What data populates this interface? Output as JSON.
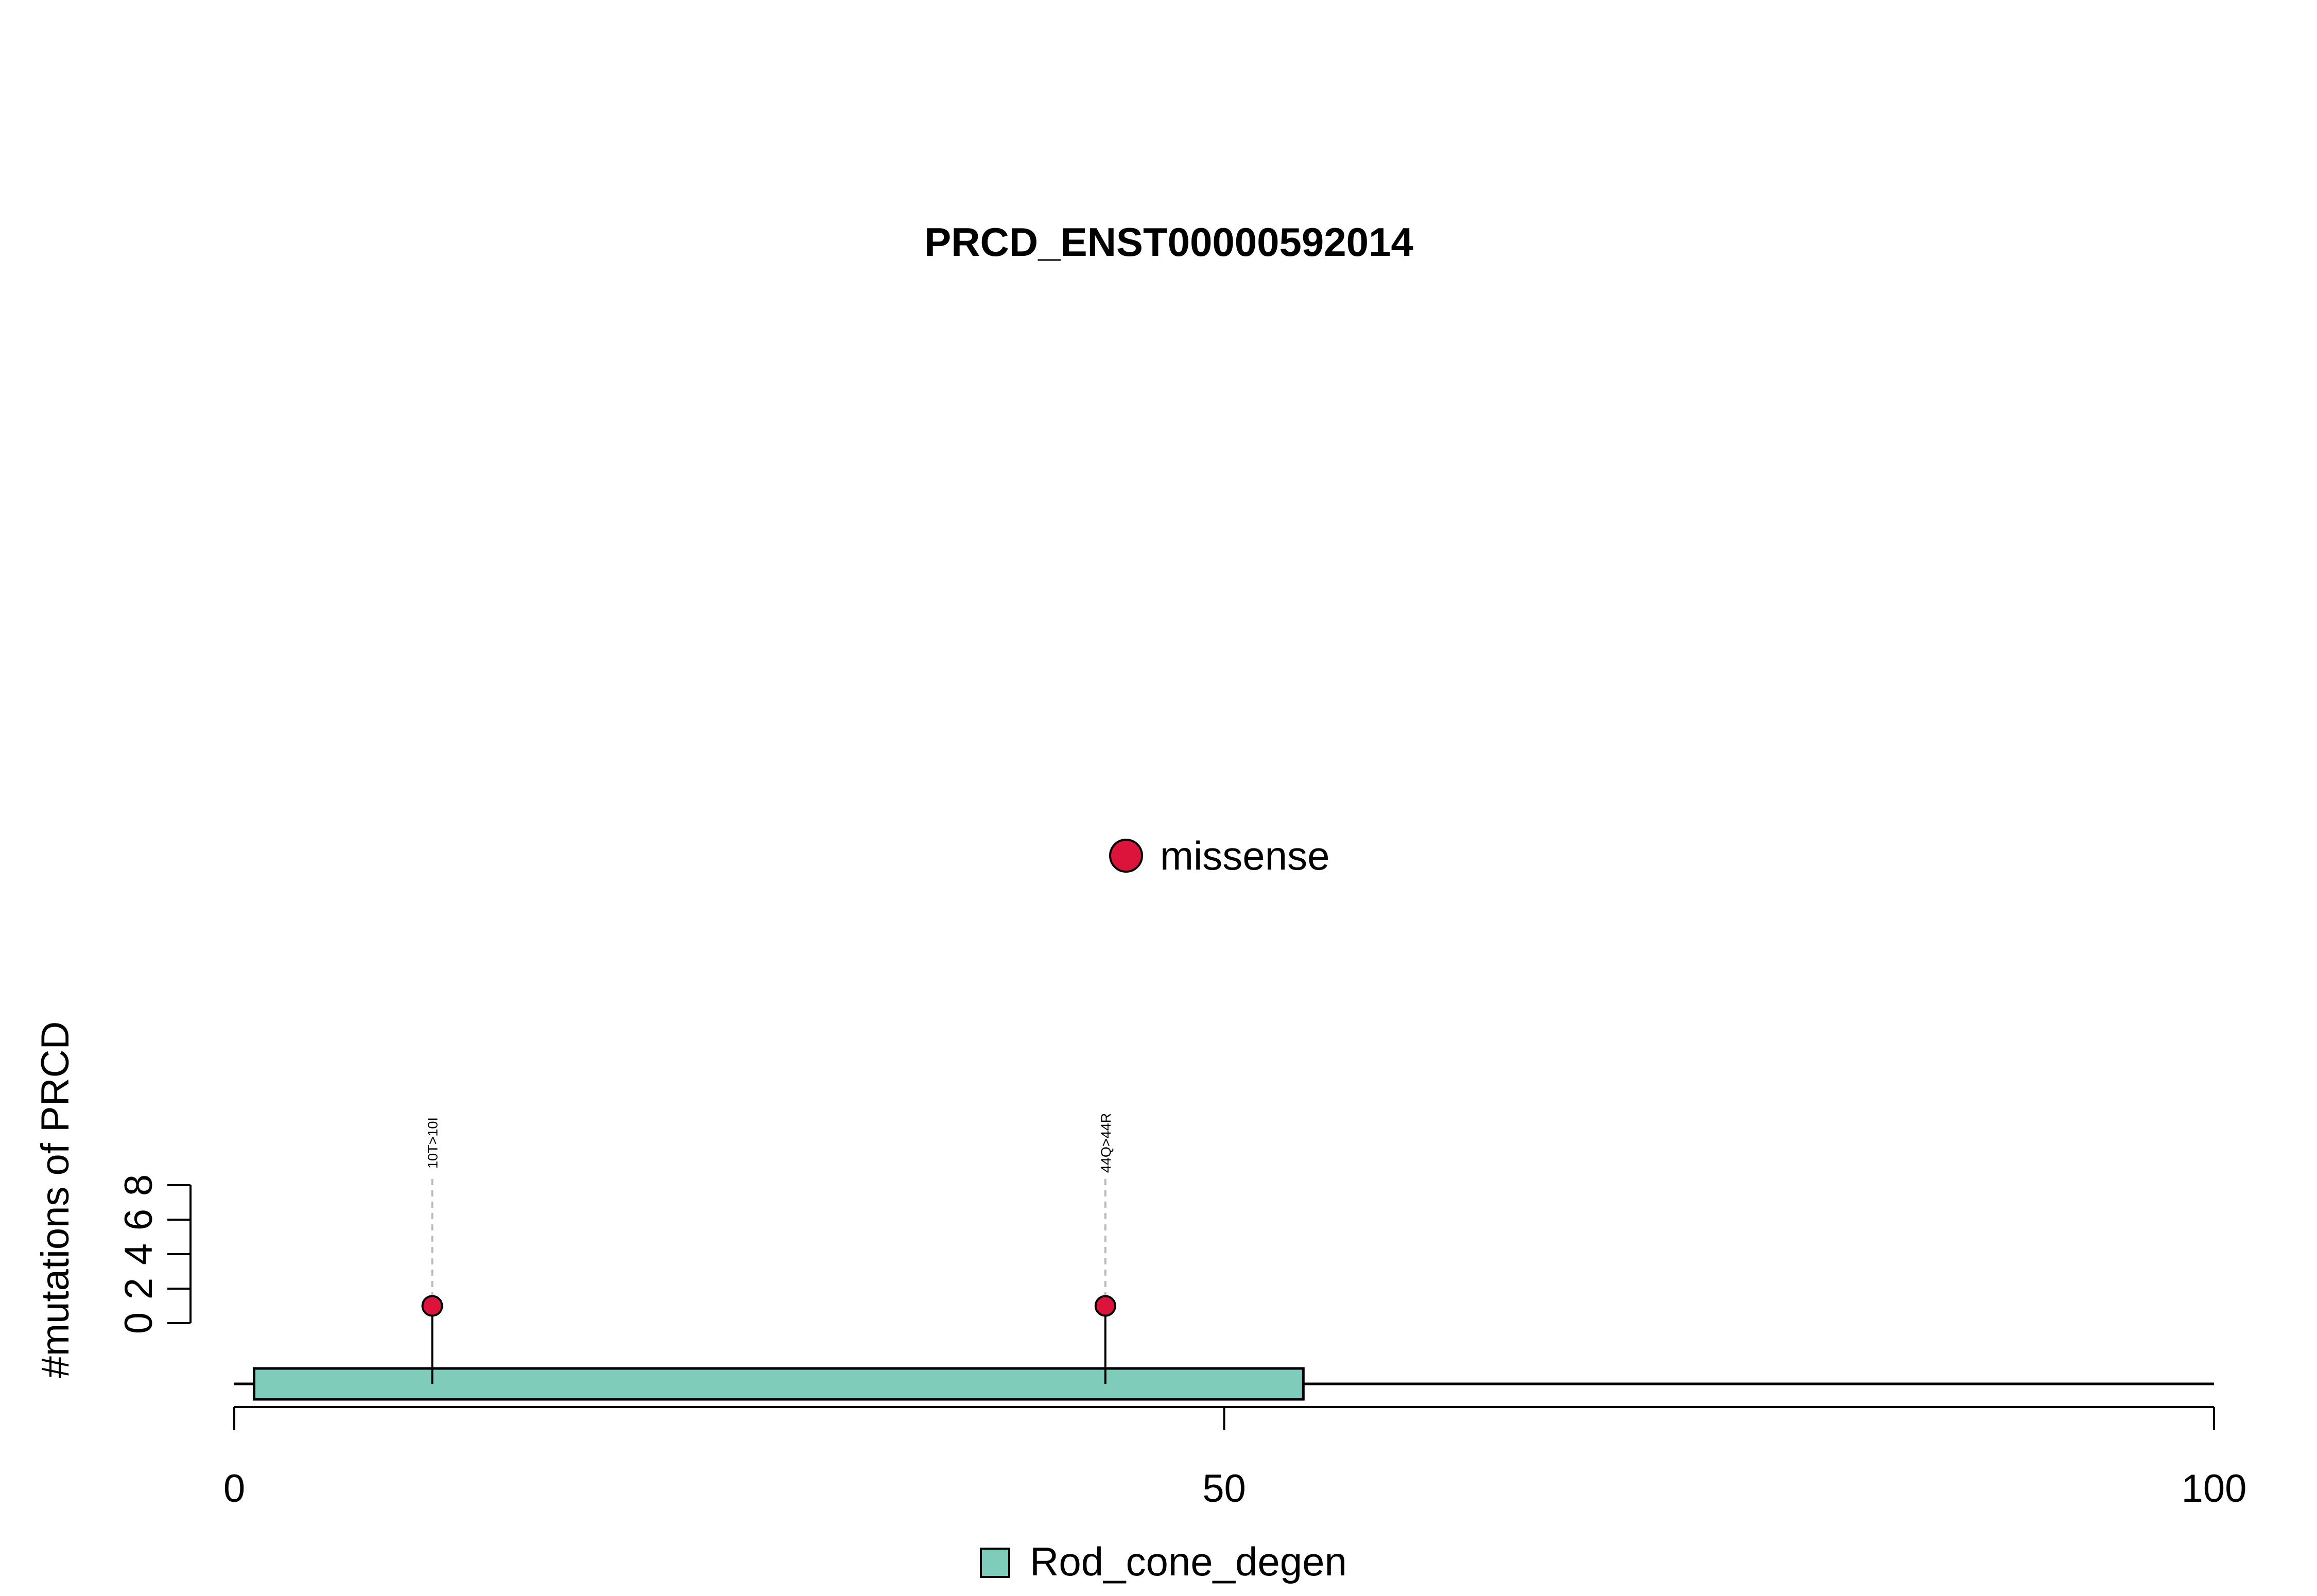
{
  "chart_data": {
    "type": "lollipop",
    "title": "PRCD_ENST00000592014",
    "ylabel": "#mutations of PRCD",
    "xlabel": "",
    "xlim": [
      0,
      100
    ],
    "x_ticks": [
      0,
      50,
      100
    ],
    "y_ticks": [
      0,
      2,
      4,
      6,
      8
    ],
    "protein_length": 100,
    "mutations": [
      {
        "position": 10,
        "count": 1,
        "label": "10T>10I",
        "type": "missense"
      },
      {
        "position": 44,
        "count": 1,
        "label": "44Q>44R",
        "type": "missense"
      }
    ],
    "domains": [
      {
        "name": "Rod_cone_degen",
        "start": 1,
        "end": 54,
        "color": "#7fccbb"
      }
    ],
    "mutation_legend": [
      {
        "label": "missense",
        "color": "#dc143c"
      }
    ],
    "domain_legend": [
      {
        "label": "Rod_cone_degen",
        "color": "#7fccbb"
      }
    ]
  }
}
